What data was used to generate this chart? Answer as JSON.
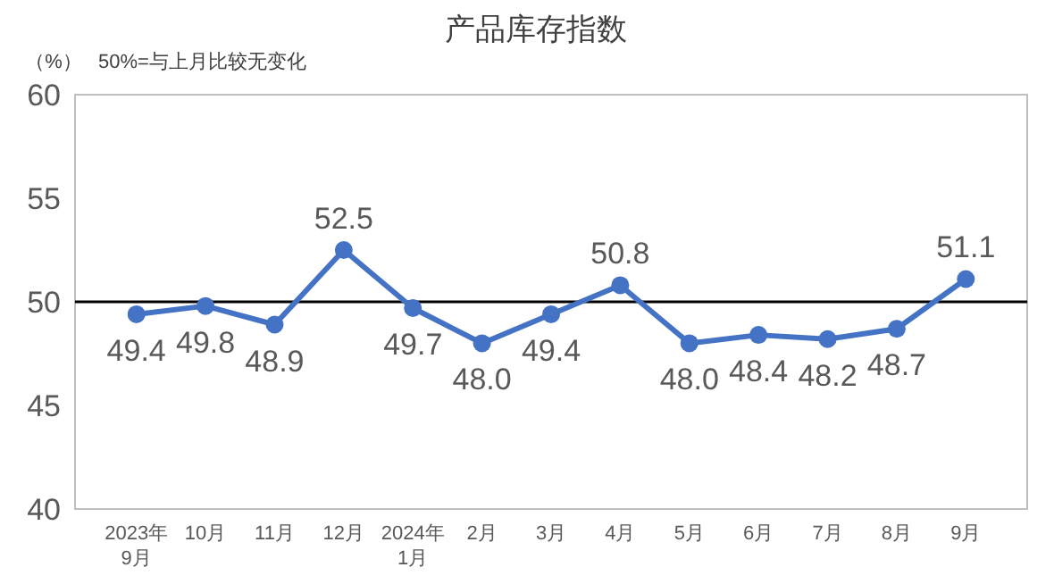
{
  "chart_data": {
    "type": "line",
    "title": "产品库存指数",
    "ylabel": "（%）",
    "annotations": [
      "50%=与上月比较无变化"
    ],
    "categories": [
      "2023年\n9月",
      "10月",
      "11月",
      "12月",
      "2024年\n1月",
      "2月",
      "3月",
      "4月",
      "5月",
      "6月",
      "7月",
      "8月",
      "9月"
    ],
    "series": [
      {
        "color": "#4472c4",
        "values": [
          49.4,
          49.8,
          48.9,
          52.5,
          49.7,
          48.0,
          49.4,
          50.8,
          48.0,
          48.4,
          48.2,
          48.7,
          51.1
        ],
        "value_labels": [
          "49.4",
          "49.8",
          "48.9",
          "52.5",
          "49.7",
          "48.0",
          "49.4",
          "50.8",
          "48.0",
          "48.4",
          "48.2",
          "48.7",
          "51.1"
        ]
      }
    ],
    "ylim": [
      40,
      60
    ],
    "yticks": [
      40,
      45,
      50,
      55,
      60
    ],
    "grid": false,
    "marker": "circle",
    "line_style": "solid",
    "ref_lines": [
      {
        "axis": "y",
        "value": 50,
        "label": null,
        "color": "#000000"
      }
    ]
  }
}
